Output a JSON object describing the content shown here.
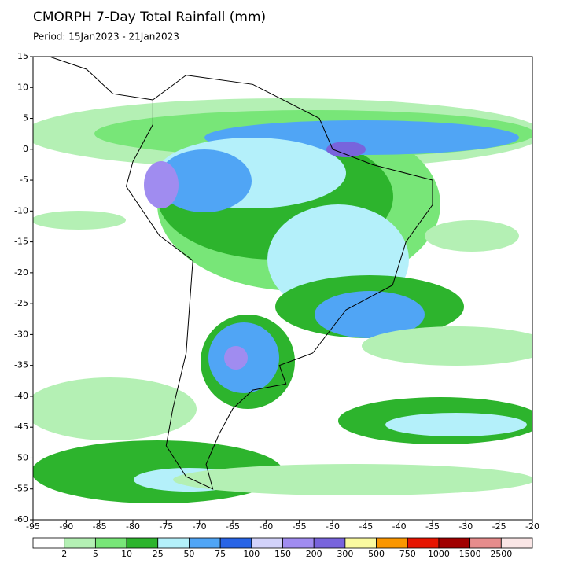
{
  "header": {
    "title": "CMORPH 7-Day Total Rainfall (mm)",
    "period": "Period: 15Jan2023 - 21Jan2023"
  },
  "map": {
    "xlim": [
      -95,
      -20
    ],
    "ylim": [
      -60,
      15
    ],
    "xticks": [
      -95,
      -90,
      -85,
      -80,
      -75,
      -70,
      -65,
      -60,
      -55,
      -50,
      -45,
      -40,
      -35,
      -30,
      -25,
      -20
    ],
    "yticks": [
      15,
      10,
      5,
      0,
      -5,
      -10,
      -15,
      -20,
      -25,
      -30,
      -35,
      -40,
      -45,
      -50,
      -55,
      -60
    ]
  },
  "legend": {
    "colors": [
      "#ffffff",
      "#b4f0b4",
      "#78e678",
      "#2db42d",
      "#b4f0fa",
      "#50a5f5",
      "#2864e6",
      "#d2d2fa",
      "#a08cf0",
      "#7864dc",
      "#fafaa0",
      "#fa9600",
      "#e61400",
      "#a00000",
      "#e68c8c",
      "#fae6e6"
    ],
    "labels": [
      2,
      5,
      10,
      25,
      50,
      75,
      100,
      150,
      200,
      300,
      500,
      750,
      1000,
      1500,
      2500
    ]
  }
}
